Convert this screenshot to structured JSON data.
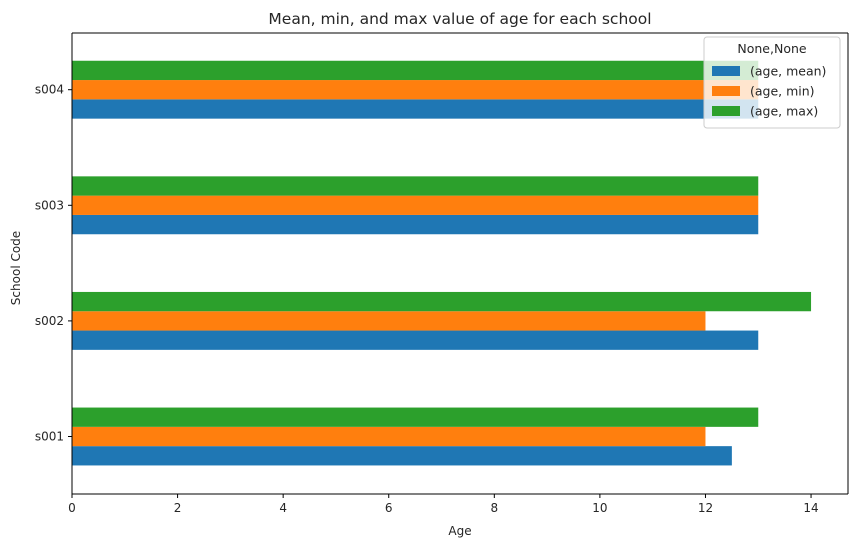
{
  "chart_data": {
    "type": "bar",
    "orientation": "horizontal",
    "title": "Mean, min, and max value of age for each school",
    "xlabel": "Age",
    "ylabel": "School Code",
    "categories": [
      "s001",
      "s002",
      "s003",
      "s004"
    ],
    "xlim": [
      0,
      14.7
    ],
    "x_ticks": [
      0,
      2,
      4,
      6,
      8,
      10,
      12,
      14
    ],
    "grid": false,
    "legend": {
      "title": "None,None",
      "placement": "top-right"
    },
    "series": [
      {
        "name": "(age, mean)",
        "values": [
          12.5,
          13,
          13,
          13
        ],
        "color": "#1f77b4"
      },
      {
        "name": "(age, min)",
        "values": [
          12,
          12,
          13,
          13
        ],
        "color": "#ff7f0e"
      },
      {
        "name": "(age, max)",
        "values": [
          13,
          14,
          13,
          13
        ],
        "color": "#2ca02c"
      }
    ]
  }
}
